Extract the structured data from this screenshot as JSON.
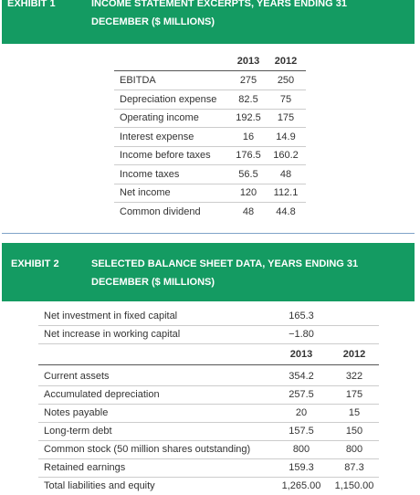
{
  "exhibit1": {
    "label": "EXHIBIT 1",
    "title_lines": [
      "INCOME STATEMENT EXCERPTS, YEARS ENDING 31",
      "DECEMBER ($ MILLIONS)"
    ],
    "columns": [
      "2013",
      "2012"
    ],
    "rows": [
      [
        "EBITDA",
        "275",
        "250"
      ],
      [
        "Depreciation expense",
        "82.5",
        "75"
      ],
      [
        "Operating income",
        "192.5",
        "175"
      ],
      [
        "Interest expense",
        "16",
        "14.9"
      ],
      [
        "Income before taxes",
        "176.5",
        "160.2"
      ],
      [
        "Income taxes",
        "56.5",
        "48"
      ],
      [
        "Net income",
        "120",
        "112.1"
      ],
      [
        "Common dividend",
        "48",
        "44.8"
      ]
    ]
  },
  "exhibit2": {
    "label": "EXHIBIT 2",
    "title_lines": [
      "SELECTED BALANCE SHEET DATA, YEARS ENDING 31",
      "DECEMBER ($ MILLIONS)"
    ],
    "pre_rows": [
      [
        "Net investment in fixed capital",
        "165.3"
      ],
      [
        "Net increase in working capital",
        "−1.80"
      ]
    ],
    "columns": [
      "2013",
      "2012"
    ],
    "rows": [
      [
        "Current assets",
        "354.2",
        "322"
      ],
      [
        "Accumulated depreciation",
        "257.5",
        "175"
      ],
      [
        "Notes payable",
        "20",
        "15"
      ],
      [
        "Long-term debt",
        "157.5",
        "150"
      ],
      [
        "Common stock (50 million shares outstanding)",
        "800",
        "800"
      ],
      [
        "Retained earnings",
        "159.3",
        "87.3"
      ],
      [
        "Total liabilities and equity",
        "1,265.00",
        "1,150.00"
      ]
    ]
  }
}
